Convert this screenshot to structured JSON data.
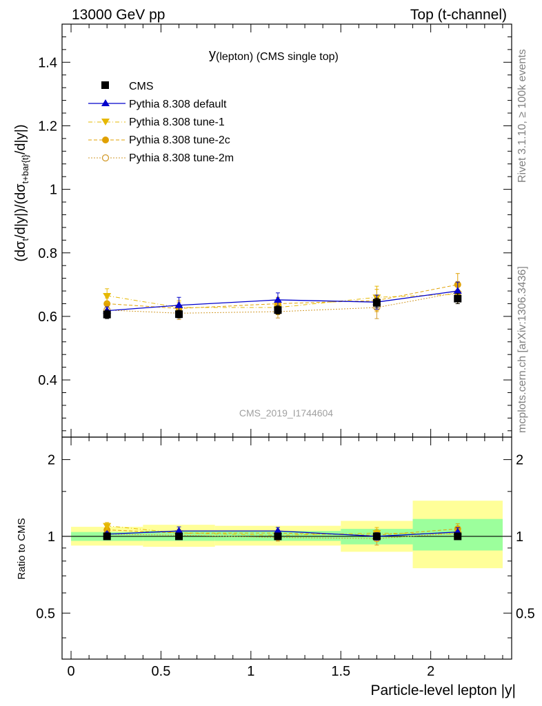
{
  "header": {
    "left": "13000 GeV pp",
    "right": "Top (t-channel)"
  },
  "side_labels": {
    "rivet": "Rivet 3.1.10, ≥ 100k events",
    "mcplots": "mcplots.cern.ch [arXiv:1306.3436]"
  },
  "watermark": "CMS_2019_I1744604",
  "colors": {
    "cms": "#000000",
    "default": "#0000cc",
    "tune1": "#e6b800",
    "tune2c": "#e0a000",
    "tune2m": "#d29a2a",
    "band_inner": "#9cff9c",
    "band_outer": "#ffff99"
  },
  "chart_data": {
    "type": "line",
    "title_main": "y",
    "title_sub": "(lepton) (CMS single top)",
    "xlabel": "Particle-level lepton |y|",
    "ylabel_ratio": "Ratio to CMS",
    "ylabel_main": {
      "p1": "(dσ",
      "s1": "t",
      "p2": "/d|y|)/(dσ",
      "s2": "t+bar{t}",
      "p3": "/d|y|)"
    },
    "xlim": [
      -0.05,
      2.45
    ],
    "ylim_main": [
      0.22,
      1.52
    ],
    "ylim_ratio": [
      0.33,
      2.45
    ],
    "x_ticks": [
      0,
      0.5,
      1,
      1.5,
      2
    ],
    "x_tick_labels": [
      "0",
      "0.5",
      "1",
      "1.5",
      "2"
    ],
    "y_ticks_main": [
      0.4,
      0.6,
      0.8,
      1,
      1.2,
      1.4
    ],
    "y_tick_labels_main": [
      "0.4",
      "0.6",
      "0.8",
      "1",
      "1.2",
      "1.4"
    ],
    "y_ticks_ratio": [
      0.5,
      1,
      2
    ],
    "y_tick_labels_ratio": [
      "0.5",
      "1",
      "2"
    ],
    "bins": [
      [
        0,
        0.4
      ],
      [
        0.4,
        0.8
      ],
      [
        0.8,
        1.5
      ],
      [
        1.5,
        1.9
      ],
      [
        1.9,
        2.4
      ]
    ],
    "x": [
      0.2,
      0.6,
      1.15,
      1.7,
      2.15
    ],
    "ratio_band_inner": [
      [
        0.96,
        1.04
      ],
      [
        0.96,
        1.05
      ],
      [
        0.96,
        1.05
      ],
      [
        0.93,
        1.07
      ],
      [
        0.88,
        1.17
      ]
    ],
    "ratio_band_outer": [
      [
        0.92,
        1.09
      ],
      [
        0.91,
        1.11
      ],
      [
        0.92,
        1.1
      ],
      [
        0.87,
        1.15
      ],
      [
        0.75,
        1.38
      ]
    ],
    "legend": [
      "CMS",
      "Pythia 8.308 default",
      "Pythia 8.308 tune-1",
      "Pythia 8.308 tune-2c",
      "Pythia 8.308 tune-2m"
    ],
    "series": [
      {
        "name": "CMS",
        "key": "cms",
        "values": [
          0.606,
          0.607,
          0.62,
          0.643,
          0.656
        ],
        "errors": [
          0.013,
          0.012,
          0.013,
          0.014,
          0.016
        ],
        "ratio": [
          1,
          1,
          1,
          1,
          1
        ]
      },
      {
        "name": "Pythia 8.308 default",
        "key": "default",
        "values": [
          0.618,
          0.635,
          0.652,
          0.645,
          0.68
        ],
        "errors": [
          0.012,
          0.025,
          0.022,
          0.022,
          0.028
        ],
        "ratio": [
          1.02,
          1.05,
          1.05,
          1.0,
          1.04
        ]
      },
      {
        "name": "Pythia 8.308 tune-1",
        "key": "tune1",
        "values": [
          0.665,
          0.628,
          0.628,
          0.66,
          0.67
        ],
        "errors": [
          0.022,
          0.022,
          0.022,
          0.035,
          0.03
        ],
        "ratio": [
          1.1,
          1.03,
          1.01,
          1.03,
          1.02
        ]
      },
      {
        "name": "Pythia 8.308 tune-2c",
        "key": "tune2c",
        "values": [
          0.64,
          0.625,
          0.64,
          0.65,
          0.7
        ],
        "errors": [
          0.018,
          0.02,
          0.02,
          0.035,
          0.035
        ],
        "ratio": [
          1.06,
          1.03,
          1.03,
          1.01,
          1.07
        ]
      },
      {
        "name": "Pythia 8.308 tune-2m",
        "key": "tune2m",
        "values": [
          0.62,
          0.61,
          0.615,
          0.628,
          0.675
        ],
        "errors": [
          0.018,
          0.02,
          0.02,
          0.035,
          0.035
        ],
        "ratio": [
          1.02,
          1.01,
          0.99,
          0.98,
          1.03
        ]
      }
    ]
  }
}
